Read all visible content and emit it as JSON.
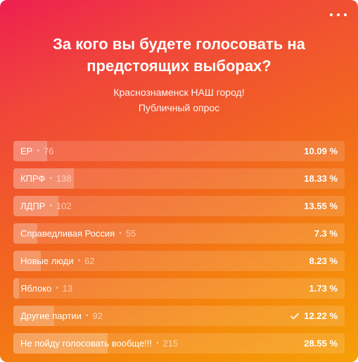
{
  "poll": {
    "title": "За кого вы будете голосовать на предстоящих выборах?",
    "subtitle_line1": "Краснознаменск НАШ город!",
    "subtitle_line2": "Публичный опрос",
    "options": [
      {
        "label": "ЕР",
        "count": "76",
        "percent": "10.09 %",
        "share": 10.09,
        "voted": false
      },
      {
        "label": "КПРФ",
        "count": "138",
        "percent": "18.33 %",
        "share": 18.33,
        "voted": false
      },
      {
        "label": "ЛДПР",
        "count": "102",
        "percent": "13.55 %",
        "share": 13.55,
        "voted": false
      },
      {
        "label": "Справедливая Россия",
        "count": "55",
        "percent": "7.3 %",
        "share": 7.3,
        "voted": false
      },
      {
        "label": "Новые люди",
        "count": "62",
        "percent": "8.23 %",
        "share": 8.23,
        "voted": false
      },
      {
        "label": "Яблоко",
        "count": "13",
        "percent": "1.73 %",
        "share": 1.73,
        "voted": false
      },
      {
        "label": "Другие партии",
        "count": "92",
        "percent": "12.22 %",
        "share": 12.22,
        "voted": true
      },
      {
        "label": "Не пойду голосовать вообще!!!",
        "count": "215",
        "percent": "28.55 %",
        "share": 28.55,
        "voted": false
      }
    ],
    "separator": "•",
    "more_icon": "more-horizontal-icon",
    "check_icon": "check-icon"
  }
}
